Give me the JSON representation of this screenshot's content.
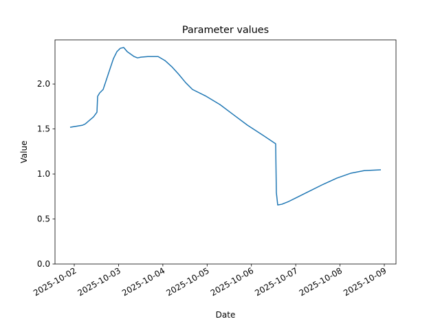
{
  "chart_data": {
    "type": "line",
    "title": "Parameter values",
    "xlabel": "Date",
    "ylabel": "Value",
    "color": "#1f77b4",
    "x": [
      "2025-10-01T21:45",
      "2025-10-02T00:00",
      "2025-10-02T04:30",
      "2025-10-02T06:00",
      "2025-10-02T08:10",
      "2025-10-02T10:25",
      "2025-10-02T12:18",
      "2025-10-02T12:40",
      "2025-10-02T13:47",
      "2025-10-02T15:39",
      "2025-10-02T17:30",
      "2025-10-02T19:22",
      "2025-10-02T21:14",
      "2025-10-02T23:06",
      "2025-10-03T00:58",
      "2025-10-03T02:49",
      "2025-10-03T04:41",
      "2025-10-03T08:25",
      "2025-10-03T10:16",
      "2025-10-03T12:08",
      "2025-10-03T15:51",
      "2025-10-03T21:27",
      "2025-10-04T01:10",
      "2025-10-04T04:54",
      "2025-10-04T08:37",
      "2025-10-04T12:21",
      "2025-10-04T16:04",
      "2025-10-04T23:31",
      "2025-10-05T06:58",
      "2025-10-05T14:25",
      "2025-10-05T21:52",
      "2025-10-06T05:19",
      "2025-10-06T13:08",
      "2025-10-06T13:30",
      "2025-10-06T14:15",
      "2025-10-06T16:30",
      "2025-10-06T20:13",
      "2025-10-06T23:57",
      "2025-10-07T07:25",
      "2025-10-07T14:52",
      "2025-10-07T22:18",
      "2025-10-08T05:45",
      "2025-10-08T13:12",
      "2025-10-08T22:08"
    ],
    "values": [
      1.519,
      1.527,
      1.542,
      1.557,
      1.595,
      1.634,
      1.687,
      1.863,
      1.901,
      1.939,
      2.053,
      2.168,
      2.282,
      2.359,
      2.397,
      2.405,
      2.359,
      2.305,
      2.29,
      2.298,
      2.305,
      2.305,
      2.26,
      2.191,
      2.107,
      2.015,
      1.939,
      1.863,
      1.771,
      1.656,
      1.542,
      1.443,
      1.336,
      0.794,
      0.656,
      0.664,
      0.695,
      0.733,
      0.809,
      0.885,
      0.954,
      1.008,
      1.038,
      1.046
    ],
    "xlim": [
      "2025-10-01T13:34",
      "2025-10-09T06:20"
    ],
    "xticks": [
      "2025-10-02",
      "2025-10-03",
      "2025-10-04",
      "2025-10-05",
      "2025-10-06",
      "2025-10-07",
      "2025-10-08",
      "2025-10-09"
    ],
    "ylim": [
      0,
      2.49
    ],
    "yticks": [
      {
        "value": 0,
        "label": "0.0"
      },
      {
        "value": 0.5,
        "label": "0.5"
      },
      {
        "value": 1,
        "label": "1.0"
      },
      {
        "value": 1.5,
        "label": "1.5"
      },
      {
        "value": 2,
        "label": "2.0"
      }
    ]
  }
}
